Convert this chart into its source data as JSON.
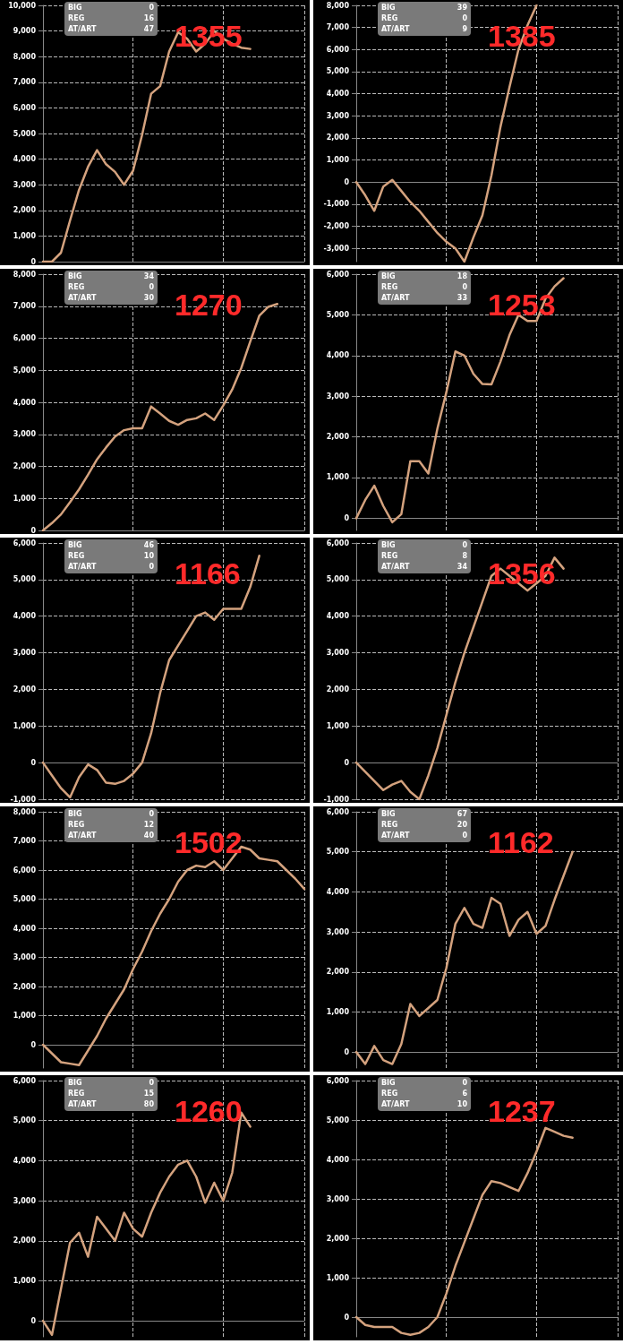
{
  "chart_data": [
    {
      "type": "line",
      "title": "1355",
      "annotations": [
        "BIG",
        "0",
        "REG",
        "16",
        "AT/ART",
        "47"
      ],
      "categories": [
        null,
        null,
        null,
        null,
        null,
        null,
        null,
        null,
        null,
        null,
        null,
        null,
        null,
        null,
        null,
        null,
        null,
        null,
        null,
        null,
        null,
        null,
        null,
        null,
        null,
        null,
        null,
        null,
        null,
        null
      ],
      "series": [
        {
          "color": "#d4a27e",
          "values": [
            0,
            0,
            350,
            1600,
            2800,
            3700,
            4350,
            3800,
            3500,
            3000,
            3550,
            4950,
            6550,
            6850,
            8200,
            8950,
            8700,
            8200,
            8500,
            9000,
            8700,
            8500,
            8350,
            8300,
            null,
            null,
            null,
            null,
            null,
            null
          ]
        }
      ],
      "ylim": [
        0,
        10000
      ],
      "yticks": [
        {
          "value": 0,
          "label": "0"
        },
        {
          "value": 1000,
          "label": "1,000"
        },
        {
          "value": 2000,
          "label": "2,000"
        },
        {
          "value": 3000,
          "label": "3,000"
        },
        {
          "value": 4000,
          "label": "4,000"
        },
        {
          "value": 5000,
          "label": "5,000"
        },
        {
          "value": 6000,
          "label": "6,000"
        },
        {
          "value": 7000,
          "label": "7,000"
        },
        {
          "value": 8000,
          "label": "8,000"
        },
        {
          "value": 9000,
          "label": "9,000"
        },
        {
          "value": 10000,
          "label": "10,000"
        }
      ],
      "grid": true,
      "marker": "none",
      "tick_labels": "y"
    },
    {
      "type": "line",
      "title": "1385",
      "annotations": [
        "BIG",
        "39",
        "REG",
        "0",
        "AT/ART",
        "9"
      ],
      "categories": [
        null,
        null,
        null,
        null,
        null,
        null,
        null,
        null,
        null,
        null,
        null,
        null,
        null,
        null,
        null,
        null,
        null,
        null,
        null,
        null,
        null,
        null,
        null,
        null,
        null,
        null,
        null,
        null,
        null,
        null
      ],
      "series": [
        {
          "color": "#d4a27e",
          "values": [
            0,
            -600,
            -1300,
            -200,
            100,
            -400,
            -900,
            -1300,
            -1800,
            -2300,
            -2700,
            -3000,
            -3600,
            -2500,
            -1500,
            300,
            2500,
            4300,
            6000,
            7100,
            8000,
            null,
            null,
            null,
            null,
            null,
            null,
            null,
            null,
            null
          ]
        }
      ],
      "ylim": [
        -3600,
        8000
      ],
      "yticks": [
        {
          "value": -3000,
          "label": "-3,000"
        },
        {
          "value": -2000,
          "label": "-2,000"
        },
        {
          "value": -1000,
          "label": "-1,000"
        },
        {
          "value": 0,
          "label": "0"
        },
        {
          "value": 1000,
          "label": "1,000"
        },
        {
          "value": 2000,
          "label": "2,000"
        },
        {
          "value": 3000,
          "label": "3,000"
        },
        {
          "value": 4000,
          "label": "4,000"
        },
        {
          "value": 5000,
          "label": "5,000"
        },
        {
          "value": 6000,
          "label": "6,000"
        },
        {
          "value": 7000,
          "label": "7,000"
        },
        {
          "value": 8000,
          "label": "8,000"
        }
      ],
      "grid": true,
      "marker": "none",
      "tick_labels": "y"
    },
    {
      "type": "line",
      "title": "1270",
      "annotations": [
        "BIG",
        "34",
        "REG",
        "0",
        "AT/ART",
        "30"
      ],
      "categories": [
        null,
        null,
        null,
        null,
        null,
        null,
        null,
        null,
        null,
        null,
        null,
        null,
        null,
        null,
        null,
        null,
        null,
        null,
        null,
        null,
        null,
        null,
        null,
        null,
        null,
        null,
        null,
        null,
        null,
        null
      ],
      "series": [
        {
          "color": "#d4a27e",
          "values": [
            0,
            230,
            500,
            880,
            1280,
            1740,
            2220,
            2590,
            2930,
            3130,
            3190,
            3190,
            3870,
            3650,
            3420,
            3300,
            3450,
            3500,
            3650,
            3450,
            3900,
            4400,
            5070,
            5900,
            6700,
            6980,
            7070,
            null,
            null,
            null
          ]
        }
      ],
      "ylim": [
        0,
        8000
      ],
      "yticks": [
        {
          "value": 0,
          "label": "0"
        },
        {
          "value": 1000,
          "label": "1,000"
        },
        {
          "value": 2000,
          "label": "2,000"
        },
        {
          "value": 3000,
          "label": "3,000"
        },
        {
          "value": 4000,
          "label": "4,000"
        },
        {
          "value": 5000,
          "label": "5,000"
        },
        {
          "value": 6000,
          "label": "6,000"
        },
        {
          "value": 7000,
          "label": "7,000"
        },
        {
          "value": 8000,
          "label": "8,000"
        }
      ],
      "grid": true,
      "marker": "none",
      "tick_labels": "y"
    },
    {
      "type": "line",
      "title": "1253",
      "annotations": [
        "BIG",
        "18",
        "REG",
        "0",
        "AT/ART",
        "33"
      ],
      "categories": [
        null,
        null,
        null,
        null,
        null,
        null,
        null,
        null,
        null,
        null,
        null,
        null,
        null,
        null,
        null,
        null,
        null,
        null,
        null,
        null,
        null,
        null,
        null,
        null,
        null,
        null,
        null,
        null,
        null,
        null
      ],
      "series": [
        {
          "color": "#d4a27e",
          "values": [
            0,
            450,
            800,
            300,
            -100,
            100,
            1400,
            1400,
            1100,
            2200,
            3100,
            4100,
            4000,
            3550,
            3300,
            3290,
            3850,
            4500,
            5000,
            4850,
            4850,
            5400,
            5700,
            5900,
            null,
            null,
            null,
            null,
            null,
            null
          ]
        }
      ],
      "ylim": [
        -300,
        6000
      ],
      "yticks": [
        {
          "value": 0,
          "label": "0"
        },
        {
          "value": 1000,
          "label": "1,000"
        },
        {
          "value": 2000,
          "label": "2,000"
        },
        {
          "value": 3000,
          "label": "3,000"
        },
        {
          "value": 4000,
          "label": "4,000"
        },
        {
          "value": 5000,
          "label": "5,000"
        },
        {
          "value": 6000,
          "label": "6,000"
        }
      ],
      "grid": true,
      "marker": "none",
      "tick_labels": "y"
    },
    {
      "type": "line",
      "title": "1166",
      "annotations": [
        "BIG",
        "46",
        "REG",
        "10",
        "AT/ART",
        "0"
      ],
      "categories": [
        null,
        null,
        null,
        null,
        null,
        null,
        null,
        null,
        null,
        null,
        null,
        null,
        null,
        null,
        null,
        null,
        null,
        null,
        null,
        null,
        null,
        null,
        null,
        null,
        null,
        null,
        null,
        null,
        null,
        null
      ],
      "series": [
        {
          "color": "#d4a27e",
          "values": [
            0,
            -350,
            -700,
            -950,
            -400,
            -50,
            -200,
            -550,
            -580,
            -500,
            -300,
            0,
            800,
            1900,
            2800,
            3200,
            3600,
            4000,
            4100,
            3900,
            4200,
            4200,
            4200,
            4800,
            5650,
            null,
            null,
            null,
            null,
            null
          ]
        }
      ],
      "ylim": [
        -1000,
        6000
      ],
      "yticks": [
        {
          "value": -1000,
          "label": "-1,000"
        },
        {
          "value": 0,
          "label": "0"
        },
        {
          "value": 1000,
          "label": "1,000"
        },
        {
          "value": 2000,
          "label": "2,000"
        },
        {
          "value": 3000,
          "label": "3,000"
        },
        {
          "value": 4000,
          "label": "4,000"
        },
        {
          "value": 5000,
          "label": "5,000"
        },
        {
          "value": 6000,
          "label": "6,000"
        }
      ],
      "grid": true,
      "marker": "none",
      "tick_labels": "y"
    },
    {
      "type": "line",
      "title": "1356",
      "annotations": [
        "BIG",
        "0",
        "REG",
        "8",
        "AT/ART",
        "34"
      ],
      "categories": [
        null,
        null,
        null,
        null,
        null,
        null,
        null,
        null,
        null,
        null,
        null,
        null,
        null,
        null,
        null,
        null,
        null,
        null,
        null,
        null,
        null,
        null,
        null,
        null,
        null,
        null,
        null,
        null,
        null,
        null
      ],
      "series": [
        {
          "color": "#d4a27e",
          "values": [
            0,
            -250,
            -500,
            -750,
            -600,
            -500,
            -800,
            -1000,
            -350,
            400,
            1300,
            2200,
            3000,
            3700,
            4400,
            5100,
            5300,
            5100,
            4900,
            4700,
            4900,
            5100,
            5600,
            5300,
            null,
            null,
            null,
            null,
            null,
            null
          ]
        }
      ],
      "ylim": [
        -1000,
        6000
      ],
      "yticks": [
        {
          "value": -1000,
          "label": "-1,000"
        },
        {
          "value": 0,
          "label": "0"
        },
        {
          "value": 1000,
          "label": "1,000"
        },
        {
          "value": 2000,
          "label": "2,000"
        },
        {
          "value": 3000,
          "label": "3,000"
        },
        {
          "value": 4000,
          "label": "4,000"
        },
        {
          "value": 5000,
          "label": "5,000"
        },
        {
          "value": 6000,
          "label": "6,000"
        }
      ],
      "grid": true,
      "marker": "none",
      "tick_labels": "y"
    },
    {
      "type": "line",
      "title": "1502",
      "annotations": [
        "BIG",
        "0",
        "REG",
        "12",
        "AT/ART",
        "40"
      ],
      "categories": [
        null,
        null,
        null,
        null,
        null,
        null,
        null,
        null,
        null,
        null,
        null,
        null,
        null,
        null,
        null,
        null,
        null,
        null,
        null,
        null,
        null,
        null,
        null,
        null,
        null,
        null,
        null,
        null,
        null,
        null
      ],
      "series": [
        {
          "color": "#d4a27e",
          "values": [
            0,
            -300,
            -600,
            -650,
            -700,
            -200,
            300,
            900,
            1400,
            1900,
            2600,
            3200,
            3900,
            4500,
            5000,
            5600,
            6000,
            6150,
            6100,
            6300,
            6000,
            6400,
            6800,
            6700,
            6400,
            6350,
            6300,
            6000,
            5700,
            5350
          ]
        }
      ],
      "ylim": [
        -800,
        8000
      ],
      "yticks": [
        {
          "value": 0,
          "label": "0"
        },
        {
          "value": 1000,
          "label": "1,000"
        },
        {
          "value": 2000,
          "label": "2,000"
        },
        {
          "value": 3000,
          "label": "3,000"
        },
        {
          "value": 4000,
          "label": "4,000"
        },
        {
          "value": 5000,
          "label": "5,000"
        },
        {
          "value": 6000,
          "label": "6,000"
        },
        {
          "value": 7000,
          "label": "7,000"
        },
        {
          "value": 8000,
          "label": "8,000"
        }
      ],
      "grid": true,
      "marker": "none",
      "tick_labels": "y"
    },
    {
      "type": "line",
      "title": "1162",
      "annotations": [
        "BIG",
        "67",
        "REG",
        "20",
        "AT/ART",
        "0"
      ],
      "categories": [
        null,
        null,
        null,
        null,
        null,
        null,
        null,
        null,
        null,
        null,
        null,
        null,
        null,
        null,
        null,
        null,
        null,
        null,
        null,
        null,
        null,
        null,
        null,
        null,
        null,
        null,
        null,
        null,
        null,
        null
      ],
      "series": [
        {
          "color": "#d4a27e",
          "values": [
            0,
            -300,
            150,
            -200,
            -300,
            200,
            1200,
            900,
            1100,
            1300,
            2100,
            3200,
            3600,
            3200,
            3100,
            3850,
            3700,
            2900,
            3300,
            3500,
            2950,
            3150,
            3800,
            4400,
            5000,
            null,
            null,
            null,
            null,
            null
          ]
        }
      ],
      "ylim": [
        -400,
        6000
      ],
      "yticks": [
        {
          "value": 0,
          "label": "0"
        },
        {
          "value": 1000,
          "label": "1,000"
        },
        {
          "value": 2000,
          "label": "2,000"
        },
        {
          "value": 3000,
          "label": "3,000"
        },
        {
          "value": 4000,
          "label": "4,000"
        },
        {
          "value": 5000,
          "label": "5,000"
        },
        {
          "value": 6000,
          "label": "6,000"
        }
      ],
      "grid": true,
      "marker": "none",
      "tick_labels": "y"
    },
    {
      "type": "line",
      "title": "1260",
      "annotations": [
        "BIG",
        "0",
        "REG",
        "15",
        "AT/ART",
        "80"
      ],
      "categories": [
        null,
        null,
        null,
        null,
        null,
        null,
        null,
        null,
        null,
        null,
        null,
        null,
        null,
        null,
        null,
        null,
        null,
        null,
        null,
        null,
        null,
        null,
        null,
        null,
        null,
        null,
        null,
        null,
        null,
        null
      ],
      "series": [
        {
          "color": "#d4a27e",
          "values": [
            0,
            -350,
            800,
            1950,
            2200,
            1600,
            2600,
            2300,
            2000,
            2700,
            2300,
            2100,
            2700,
            3200,
            3600,
            3900,
            4000,
            3600,
            2950,
            3450,
            3000,
            3700,
            5200,
            4850,
            null,
            null,
            null,
            null,
            null,
            null
          ]
        }
      ],
      "ylim": [
        -400,
        6000
      ],
      "yticks": [
        {
          "value": 0,
          "label": "0"
        },
        {
          "value": 1000,
          "label": "1,000"
        },
        {
          "value": 2000,
          "label": "2,000"
        },
        {
          "value": 3000,
          "label": "3,000"
        },
        {
          "value": 4000,
          "label": "4,000"
        },
        {
          "value": 5000,
          "label": "5,000"
        },
        {
          "value": 6000,
          "label": "6,000"
        }
      ],
      "grid": true,
      "marker": "none",
      "tick_labels": "y"
    },
    {
      "type": "line",
      "title": "1237",
      "annotations": [
        "BIG",
        "0",
        "REG",
        "6",
        "AT/ART",
        "10"
      ],
      "categories": [
        null,
        null,
        null,
        null,
        null,
        null,
        null,
        null,
        null,
        null,
        null,
        null,
        null,
        null,
        null,
        null,
        null,
        null,
        null,
        null,
        null,
        null,
        null,
        null,
        null,
        null,
        null,
        null,
        null,
        null
      ],
      "series": [
        {
          "color": "#d4a27e",
          "values": [
            0,
            -200,
            -250,
            -250,
            -250,
            -400,
            -450,
            -400,
            -250,
            0,
            600,
            1300,
            1900,
            2500,
            3100,
            3450,
            3400,
            3300,
            3200,
            3650,
            4200,
            4800,
            4700,
            4600,
            4550,
            null,
            null,
            null,
            null,
            null
          ]
        }
      ],
      "ylim": [
        -500,
        6000
      ],
      "yticks": [
        {
          "value": 0,
          "label": "0"
        },
        {
          "value": 1000,
          "label": "1,000"
        },
        {
          "value": 2000,
          "label": "2,000"
        },
        {
          "value": 3000,
          "label": "3,000"
        },
        {
          "value": 4000,
          "label": "4,000"
        },
        {
          "value": 5000,
          "label": "5,000"
        },
        {
          "value": 6000,
          "label": "6,000"
        }
      ],
      "grid": true,
      "marker": "none",
      "tick_labels": "y"
    }
  ]
}
